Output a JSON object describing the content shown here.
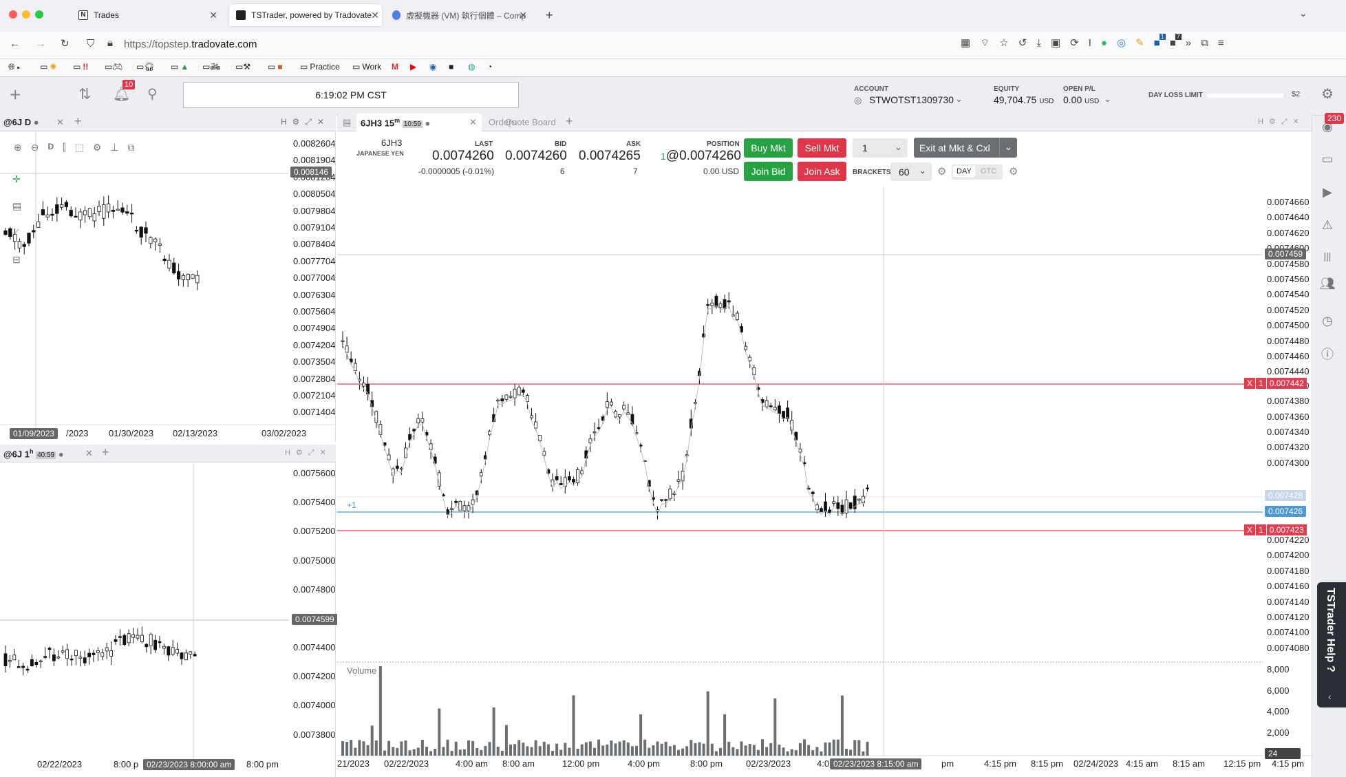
{
  "browser": {
    "tabs": [
      {
        "label": "Trades"
      },
      {
        "label": "TSTrader, powered by Tradovate"
      },
      {
        "label": "虛擬機器 (VM) 執行個體 – Comp"
      }
    ],
    "url_prefix": "https://topstep.",
    "url_domain": "tradovate.com",
    "bookmarks": [
      {
        "label": "Practice"
      },
      {
        "label": "Work"
      }
    ],
    "extension_badges": {
      "b1": "1",
      "b2": "7"
    }
  },
  "app": {
    "notification_count": "10",
    "clock": "6:19:02 PM CST",
    "account_label": "ACCOUNT",
    "account_value": "STWOTST1309730",
    "equity_label": "EQUITY",
    "equity_value": "49,704.75",
    "equity_unit": "USD",
    "openpl_label": "OPEN P/L",
    "openpl_value": "0.00",
    "openpl_unit": "USD",
    "dayloss_label": "DAY LOSS LIMIT",
    "dayloss_value": "$2",
    "dayloss_fraction": 0.98,
    "side_badge": "230",
    "help_label": "TSTrader Help ?"
  },
  "left_top": {
    "tab_label": "@6J D",
    "toolbar_d": "D",
    "price_ticks": [
      "0.0082604",
      "0.0081904",
      "0.0081204",
      "0.0080504",
      "0.0079804",
      "0.0079104",
      "0.0078404",
      "0.0077704",
      "0.0077004",
      "0.0076304",
      "0.0075604",
      "0.0074904",
      "0.0074204",
      "0.0073504",
      "0.0072804",
      "0.0072104",
      "0.0071404"
    ],
    "hl_price": "0.008146",
    "date_labels": [
      "/2023",
      "01/30/2023",
      "02/13/2023",
      "03/02/2023"
    ],
    "hl_date": "01/09/2023"
  },
  "left_bottom": {
    "tab_label": "@6J 1",
    "tab_sup": "h",
    "timer": "40:59",
    "price_ticks": [
      "0.0075600",
      "0.0075400",
      "0.0075200",
      "0.0075000",
      "0.0074800",
      "0.0074400",
      "0.0074200",
      "0.0074000",
      "0.0073800"
    ],
    "hl_price": "0.0074599",
    "date_labels": [
      "02/22/2023",
      "8:00 p",
      "8:00 pm"
    ],
    "hl_date": "02/23/2023 8:00:00 am"
  },
  "main": {
    "tab_label": "6JH3 15",
    "tab_sup": "m",
    "timer": "10:59",
    "tab_orders": "Orders",
    "tab_quote": "Quote Board",
    "symbol": "6JH3",
    "symbol_desc": "JAPANESE YEN",
    "last_label": "LAST",
    "last_value": "0.0074260",
    "last_change": "-0.0000005 (-0.01%)",
    "bid_label": "BID",
    "bid_value": "0.0074260",
    "bid_size": "6",
    "ask_label": "ASK",
    "ask_value": "0.0074265",
    "ask_size": "7",
    "position_label": "POSITION",
    "position_qty": "1",
    "position_value": "@0.0074260",
    "position_pl": "0.00 USD",
    "buy_mkt": "Buy Mkt",
    "sell_mkt": "Sell Mkt",
    "join_bid": "Join Bid",
    "join_ask": "Join Ask",
    "qty": "1",
    "exit_label": "Exit at Mkt & Cxl",
    "brackets_label": "BRACKETS",
    "brackets_value": "60",
    "day": "DAY",
    "gtc": "GTC",
    "position_marker": "+1",
    "volume_label": "Volume",
    "price_ticks": [
      "0.0074660",
      "0.0074640",
      "0.0074620",
      "0.0074600",
      "0.0074580",
      "0.0074560",
      "0.0074540",
      "0.0074520",
      "0.0074500",
      "0.0074480",
      "0.0074460",
      "0.0074440",
      "0.0074400",
      "0.0074380",
      "0.0074360",
      "0.0074340",
      "0.0074320",
      "0.0074300",
      "0.0074220",
      "0.0074200",
      "0.0074180",
      "0.0074160",
      "0.0074140",
      "0.0074120",
      "0.0074100",
      "0.0074080"
    ],
    "hl_high": "0.007459",
    "order_upper": {
      "x": "X",
      "qty": "1",
      "price": "0.007442"
    },
    "order_lower": {
      "x": "X",
      "qty": "1",
      "price": "0.007423"
    },
    "last_tag": "0.007426",
    "faint_tag": "0.007428",
    "volume_ticks": [
      "8,000",
      "6,000",
      "4,000",
      "2,000"
    ],
    "volume_tag": "24",
    "date_labels": [
      "21/2023",
      "02/22/2023",
      "4:00 am",
      "8:00 am",
      "12:00 pm",
      "4:00 pm",
      "8:00 pm",
      "02/23/2023",
      "4:0",
      "pm",
      "4:15 pm",
      "8:15 pm",
      "02/24/2023",
      "4:15 am",
      "8:15 am",
      "12:15 pm",
      "4:15 pm"
    ],
    "hl_date": "02/23/2023 8:15:00 am"
  },
  "colors": {
    "green": "#27a243",
    "red": "#e03649",
    "order_line": "#e23c50",
    "last_line": "#4b9ad6"
  }
}
